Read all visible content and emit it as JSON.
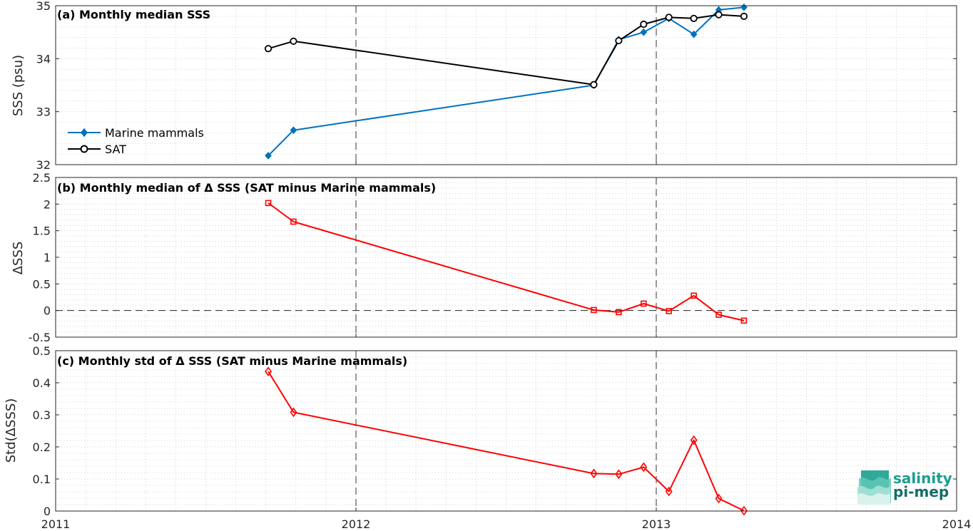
{
  "colors": {
    "marine": "#0072BD",
    "sat": "#000000",
    "delta": "#FF0000",
    "grid": "#c8c8c8",
    "axis": "#262626",
    "logo": "#1a9e8f"
  },
  "x_axis": {
    "ticks": [
      2011,
      2012,
      2013,
      2014
    ],
    "tick_labels": [
      "2011",
      "2012",
      "2013",
      "2014"
    ],
    "range": [
      2011,
      2014
    ],
    "dashed_vertical_lines": [
      2012,
      2013
    ]
  },
  "logo": {
    "line1": "salinity",
    "line2": "pi-mep"
  },
  "chart_data": [
    {
      "type": "line",
      "title": "(a) Monthly median SSS",
      "ylabel": "SSS (psu)",
      "ylim": [
        32,
        35
      ],
      "yticks": [
        32,
        33,
        34,
        35
      ],
      "ytick_labels": [
        "32",
        "33",
        "34",
        "35"
      ],
      "grid": true,
      "legend": "left",
      "series": [
        {
          "name": "Marine mammals",
          "color_key": "marine",
          "marker": "diamond-filled",
          "x": [
            2011.708,
            2011.792,
            2012.792,
            2012.875,
            2012.958,
            2013.042,
            2013.125,
            2013.208,
            2013.292
          ],
          "values": [
            32.17,
            32.65,
            33.5,
            34.36,
            34.5,
            34.76,
            34.46,
            34.92,
            34.97
          ]
        },
        {
          "name": "SAT",
          "color_key": "sat",
          "marker": "circle-open",
          "x": [
            2011.708,
            2011.792,
            2012.792,
            2012.875,
            2012.958,
            2013.042,
            2013.125,
            2013.208,
            2013.292
          ],
          "values": [
            34.19,
            34.33,
            33.51,
            34.34,
            34.65,
            34.78,
            34.76,
            34.83,
            34.8
          ]
        }
      ]
    },
    {
      "type": "line",
      "title": "(b) Monthly median of Δ SSS (SAT minus Marine mammals)",
      "ylabel": "ΔSSS",
      "ylim": [
        -0.5,
        2.5
      ],
      "yticks": [
        -0.5,
        0,
        0.5,
        1,
        1.5,
        2,
        2.5
      ],
      "ytick_labels": [
        "-0.5",
        "0",
        "0.5",
        "1",
        "1.5",
        "2",
        "2.5"
      ],
      "grid": true,
      "zero_line": true,
      "series": [
        {
          "color_key": "delta",
          "marker": "square-open",
          "x": [
            2011.708,
            2011.792,
            2012.792,
            2012.875,
            2012.958,
            2013.042,
            2013.125,
            2013.208,
            2013.292
          ],
          "values": [
            2.02,
            1.67,
            0.01,
            -0.03,
            0.13,
            -0.01,
            0.28,
            -0.08,
            -0.19
          ]
        }
      ]
    },
    {
      "type": "line",
      "title": "(c) Monthly std of Δ SSS (SAT minus Marine mammals)",
      "ylabel": "Std(ΔSSS)",
      "ylim": [
        0,
        0.5
      ],
      "yticks": [
        0,
        0.1,
        0.2,
        0.3,
        0.4,
        0.5
      ],
      "ytick_labels": [
        "0",
        "0.1",
        "0.2",
        "0.3",
        "0.4",
        "0.5"
      ],
      "grid": true,
      "series": [
        {
          "color_key": "delta",
          "marker": "diamond-open",
          "x": [
            2011.708,
            2011.792,
            2012.792,
            2012.875,
            2012.958,
            2013.042,
            2013.125,
            2013.208,
            2013.292
          ],
          "values": [
            0.435,
            0.308,
            0.117,
            0.115,
            0.137,
            0.061,
            0.221,
            0.039,
            0.001
          ]
        }
      ]
    }
  ]
}
